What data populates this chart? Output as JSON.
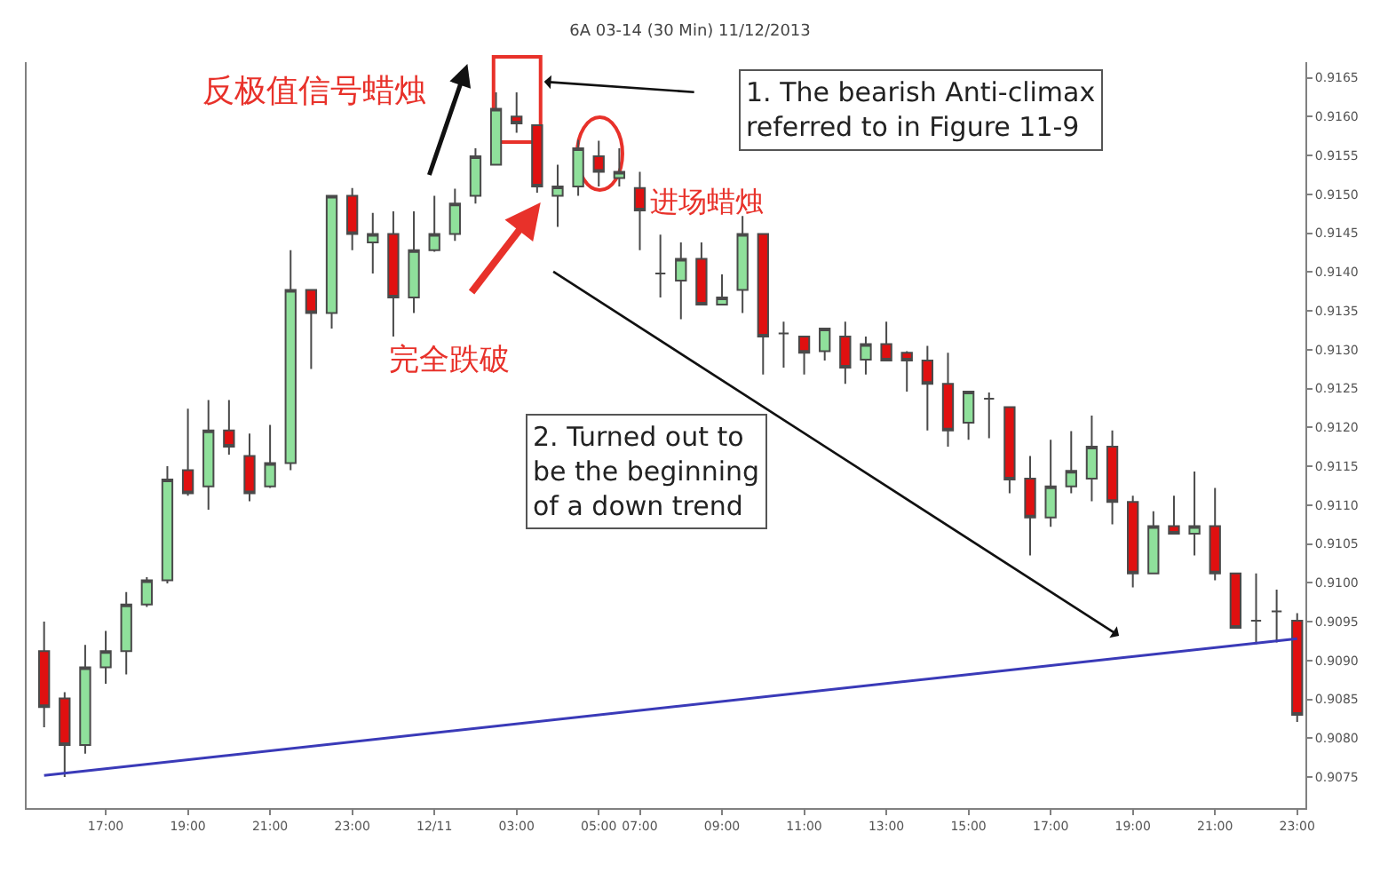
{
  "chart_data": {
    "type": "candlestick",
    "title": "6A 03-14 (30 Min) 11/12/2013",
    "categories": [
      null,
      null,
      null,
      "17:00",
      null,
      null,
      null,
      "19:00",
      null,
      null,
      null,
      "21:00",
      null,
      null,
      null,
      "23:00",
      null,
      null,
      null,
      "12/11",
      null,
      null,
      null,
      "03:00",
      null,
      null,
      null,
      "05:00",
      null,
      "07:00",
      null,
      null,
      null,
      "09:00",
      null,
      null,
      null,
      "11:00",
      null,
      null,
      null,
      "13:00",
      null,
      null,
      null,
      "15:00",
      null,
      null,
      null,
      "17:00",
      null,
      null,
      null,
      "19:00",
      null,
      null,
      null,
      "21:00",
      null,
      null,
      null,
      "23:00"
    ],
    "ohlc": [
      [
        0.90912,
        0.9095,
        0.90814,
        0.9084
      ],
      [
        0.90851,
        0.90859,
        0.9075,
        0.90791
      ],
      [
        0.90791,
        0.9092,
        0.9078,
        0.90891
      ],
      [
        0.90891,
        0.90938,
        0.9087,
        0.90912
      ],
      [
        0.90912,
        0.90988,
        0.90882,
        0.90972
      ],
      [
        0.90972,
        0.91007,
        0.90969,
        0.91003
      ],
      [
        0.91003,
        0.9115,
        0.90999,
        0.91133
      ],
      [
        0.91145,
        0.91224,
        0.91112,
        0.91115
      ],
      [
        0.91124,
        0.91235,
        0.91094,
        0.91196
      ],
      [
        0.91196,
        0.91235,
        0.91165,
        0.91175
      ],
      [
        0.91163,
        0.91192,
        0.91105,
        0.91115
      ],
      [
        0.91124,
        0.91203,
        0.91122,
        0.91154
      ],
      [
        0.91154,
        0.91428,
        0.91145,
        0.91377
      ],
      [
        0.91377,
        0.91377,
        0.91275,
        0.91347
      ],
      [
        0.91347,
        0.91498,
        0.91327,
        0.91498
      ],
      [
        0.91498,
        0.91508,
        0.91428,
        0.91449
      ],
      [
        0.91438,
        0.91476,
        0.91398,
        0.91449
      ],
      [
        0.91449,
        0.91478,
        0.91317,
        0.91367
      ],
      [
        0.91367,
        0.91478,
        0.91347,
        0.91428
      ],
      [
        0.91428,
        0.91498,
        0.91426,
        0.91449
      ],
      [
        0.91449,
        0.91507,
        0.9144,
        0.91488
      ],
      [
        0.91498,
        0.91559,
        0.91488,
        0.91549
      ],
      [
        0.91538,
        0.91631,
        0.91538,
        0.9161
      ],
      [
        0.916,
        0.91631,
        0.91579,
        0.91591
      ],
      [
        0.91589,
        0.91589,
        0.91502,
        0.9151
      ],
      [
        0.91498,
        0.91538,
        0.91458,
        0.9151
      ],
      [
        0.9151,
        0.9157,
        0.91498,
        0.91559
      ],
      [
        0.91549,
        0.91569,
        0.9151,
        0.91529
      ],
      [
        0.91521,
        0.91559,
        0.9151,
        0.91529
      ],
      [
        0.91508,
        0.91529,
        0.91428,
        0.91479
      ],
      [
        0.91398,
        0.91448,
        0.91367,
        0.91398
      ],
      [
        0.91389,
        0.91438,
        0.91339,
        0.91417
      ],
      [
        0.91417,
        0.91438,
        0.91357,
        0.91358
      ],
      [
        0.91358,
        0.91397,
        0.91357,
        0.91367
      ],
      [
        0.91377,
        0.91472,
        0.91347,
        0.91449
      ],
      [
        0.91449,
        0.91449,
        0.91268,
        0.91317
      ],
      [
        0.91321,
        0.91336,
        0.91277,
        0.91321
      ],
      [
        0.91317,
        0.91317,
        0.91268,
        0.91296
      ],
      [
        0.91298,
        0.91328,
        0.91286,
        0.91327
      ],
      [
        0.91317,
        0.91336,
        0.91256,
        0.91277
      ],
      [
        0.91287,
        0.91317,
        0.91268,
        0.91307
      ],
      [
        0.91307,
        0.91336,
        0.91286,
        0.91286
      ],
      [
        0.91296,
        0.91298,
        0.91246,
        0.91286
      ],
      [
        0.91286,
        0.91305,
        0.91196,
        0.91256
      ],
      [
        0.91256,
        0.91296,
        0.91175,
        0.91196
      ],
      [
        0.91206,
        0.91246,
        0.91184,
        0.91246
      ],
      [
        0.91237,
        0.91245,
        0.91186,
        0.91237
      ],
      [
        0.91226,
        0.91226,
        0.91115,
        0.91133
      ],
      [
        0.91134,
        0.91163,
        0.91035,
        0.91084
      ],
      [
        0.91084,
        0.91184,
        0.91072,
        0.91124
      ],
      [
        0.91124,
        0.91195,
        0.91115,
        0.91144
      ],
      [
        0.91134,
        0.91215,
        0.91105,
        0.91175
      ],
      [
        0.91175,
        0.91196,
        0.91075,
        0.91104
      ],
      [
        0.91104,
        0.91112,
        0.90994,
        0.91012
      ],
      [
        0.91012,
        0.91092,
        0.91012,
        0.91073
      ],
      [
        0.91073,
        0.91112,
        0.91063,
        0.91063
      ],
      [
        0.91063,
        0.91143,
        0.91035,
        0.91073
      ],
      [
        0.91073,
        0.91122,
        0.91003,
        0.91012
      ],
      [
        0.91012,
        0.91012,
        0.90942,
        0.90942
      ],
      [
        0.90951,
        0.91012,
        0.90921,
        0.90951
      ],
      [
        0.90963,
        0.90991,
        0.90923,
        0.90963
      ],
      [
        0.90951,
        0.90961,
        0.90821,
        0.9083
      ]
    ],
    "series": [
      {
        "type": "line",
        "color": "#3a3ab8",
        "values": [
          0.90752,
          null,
          null,
          null,
          null,
          null,
          null,
          null,
          null,
          null,
          null,
          null,
          null,
          null,
          null,
          null,
          null,
          null,
          null,
          null,
          null,
          null,
          null,
          null,
          null,
          null,
          null,
          null,
          null,
          null,
          null,
          null,
          null,
          null,
          null,
          null,
          null,
          null,
          null,
          null,
          null,
          null,
          null,
          null,
          null,
          null,
          null,
          null,
          null,
          null,
          null,
          null,
          null,
          null,
          null,
          null,
          null,
          null,
          null,
          null,
          null,
          0.90928
        ]
      }
    ],
    "ylim": [
      0.9071,
      0.9167
    ],
    "yticks": [
      {
        "value": 0.9075,
        "label": "0.9075"
      },
      {
        "value": 0.908,
        "label": "0.9080"
      },
      {
        "value": 0.9085,
        "label": "0.9085"
      },
      {
        "value": 0.909,
        "label": "0.9090"
      },
      {
        "value": 0.9095,
        "label": "0.9095"
      },
      {
        "value": 0.91,
        "label": "0.9100"
      },
      {
        "value": 0.9105,
        "label": "0.9105"
      },
      {
        "value": 0.911,
        "label": "0.9110"
      },
      {
        "value": 0.9115,
        "label": "0.9115"
      },
      {
        "value": 0.912,
        "label": "0.9120"
      },
      {
        "value": 0.9125,
        "label": "0.9125"
      },
      {
        "value": 0.913,
        "label": "0.9130"
      },
      {
        "value": 0.9135,
        "label": "0.9135"
      },
      {
        "value": 0.914,
        "label": "0.9140"
      },
      {
        "value": 0.9145,
        "label": "0.9145"
      },
      {
        "value": 0.915,
        "label": "0.9150"
      },
      {
        "value": 0.9155,
        "label": "0.9155"
      },
      {
        "value": 0.916,
        "label": "0.9160"
      },
      {
        "value": 0.9165,
        "label": "0.9165"
      }
    ],
    "annotations": [
      "反极值信号蜡烛",
      "1. The bearish Anti-climax\nreferred to in Figure 11-9",
      "完全跌破",
      "进场蜡烛",
      "2. Turned out to\nbe the beginning\nof a down trend"
    ]
  }
}
